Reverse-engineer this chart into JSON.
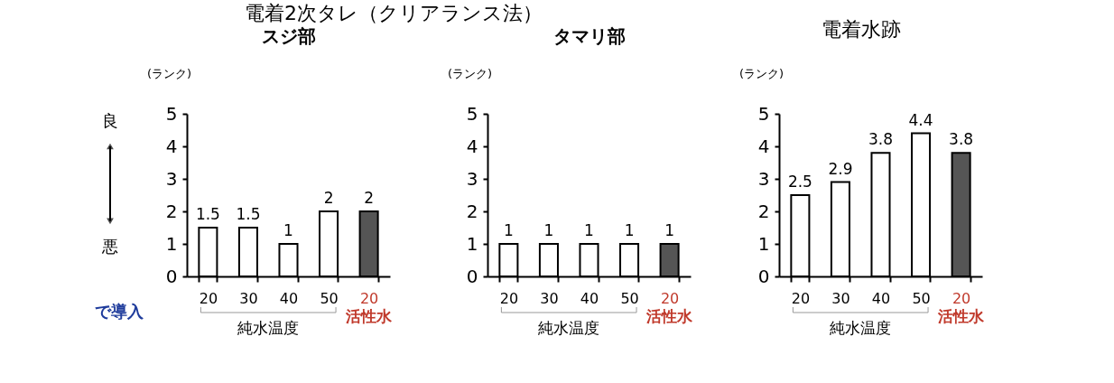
{
  "chart_data": [
    {
      "type": "bar",
      "title": "電着2次タレ（クリアランス法）",
      "subtitle": "スジ部",
      "ylabel": "(ランク)",
      "categories": [
        "20",
        "30",
        "40",
        "50",
        "20"
      ],
      "values": [
        1.5,
        1.5,
        1,
        2,
        2
      ],
      "colors": [
        "#ffffff",
        "#ffffff",
        "#ffffff",
        "#ffffff",
        "#555555"
      ],
      "ylim": [
        0,
        5
      ],
      "yticks": [
        0,
        1,
        2,
        3,
        4,
        5
      ],
      "data_labels": true,
      "grid": false,
      "annotations": [
        "良",
        "悪",
        "で導入",
        "純水温度",
        "活性水"
      ]
    },
    {
      "type": "bar",
      "subtitle": "タマリ部",
      "ylabel": "(ランク)",
      "categories": [
        "20",
        "30",
        "40",
        "50",
        "20"
      ],
      "values": [
        1,
        1,
        1,
        1,
        1
      ],
      "colors": [
        "#ffffff",
        "#ffffff",
        "#ffffff",
        "#ffffff",
        "#555555"
      ],
      "ylim": [
        0,
        5
      ],
      "yticks": [
        0,
        1,
        2,
        3,
        4,
        5
      ],
      "data_labels": true,
      "grid": false,
      "annotations": [
        "純水温度",
        "活性水"
      ]
    },
    {
      "type": "bar",
      "title": "電着水跡",
      "ylabel": "(ランク)",
      "categories": [
        "20",
        "30",
        "40",
        "50",
        "20"
      ],
      "values": [
        2.5,
        2.9,
        3.8,
        4.4,
        3.8
      ],
      "colors": [
        "#ffffff",
        "#ffffff",
        "#ffffff",
        "#ffffff",
        "#555555"
      ],
      "ylim": [
        0,
        5
      ],
      "yticks": [
        0,
        1,
        2,
        3,
        4,
        5
      ],
      "data_labels": true,
      "grid": false,
      "annotations": [
        "純水温度",
        "活性水"
      ]
    }
  ]
}
